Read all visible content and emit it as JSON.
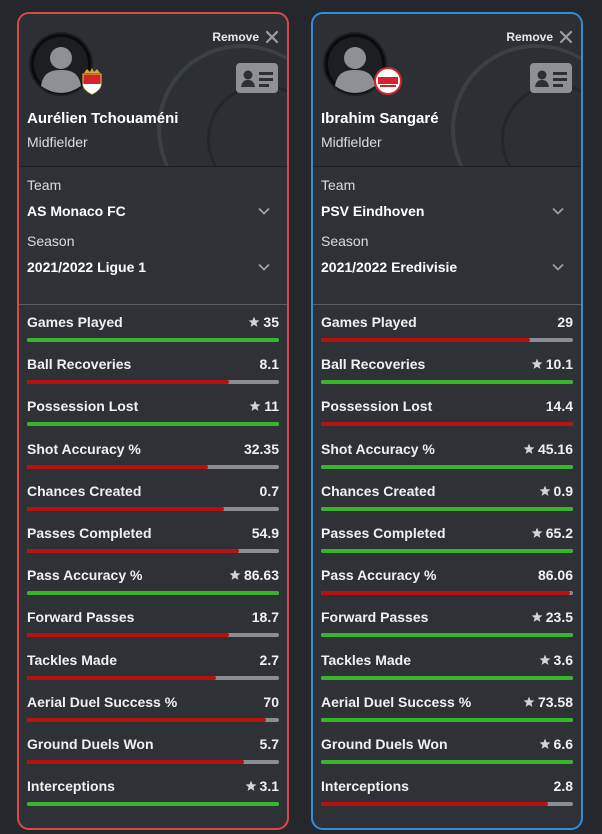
{
  "colors": {
    "better": "#38b52a",
    "worse": "#b51212",
    "track": "#8a8e94",
    "card_a_border": "#d64a4a",
    "card_b_border": "#2f8ee0"
  },
  "cards": [
    {
      "remove_label": "Remove",
      "club_badge": "as-monaco-badge",
      "name": "Aurélien Tchouaméni",
      "position": "Midfielder",
      "team_label": "Team",
      "team": "AS Monaco FC",
      "season_label": "Season",
      "season": "2021/2022 Ligue 1",
      "stats": [
        {
          "label": "Games Played",
          "value": "35",
          "star": true,
          "fill": 1.0,
          "status": "better"
        },
        {
          "label": "Ball Recoveries",
          "value": "8.1",
          "star": false,
          "fill": 0.8,
          "status": "worse"
        },
        {
          "label": "Possession Lost",
          "value": "11",
          "star": true,
          "fill": 1.0,
          "status": "better"
        },
        {
          "label": "Shot Accuracy %",
          "value": "32.35",
          "star": false,
          "fill": 0.72,
          "status": "worse"
        },
        {
          "label": "Chances Created",
          "value": "0.7",
          "star": false,
          "fill": 0.78,
          "status": "worse"
        },
        {
          "label": "Passes Completed",
          "value": "54.9",
          "star": false,
          "fill": 0.84,
          "status": "worse"
        },
        {
          "label": "Pass Accuracy %",
          "value": "86.63",
          "star": true,
          "fill": 1.0,
          "status": "better"
        },
        {
          "label": "Forward Passes",
          "value": "18.7",
          "star": false,
          "fill": 0.8,
          "status": "worse"
        },
        {
          "label": "Tackles Made",
          "value": "2.7",
          "star": false,
          "fill": 0.75,
          "status": "worse"
        },
        {
          "label": "Aerial Duel Success %",
          "value": "70",
          "star": false,
          "fill": 0.95,
          "status": "worse"
        },
        {
          "label": "Ground Duels Won",
          "value": "5.7",
          "star": false,
          "fill": 0.86,
          "status": "worse"
        },
        {
          "label": "Interceptions",
          "value": "3.1",
          "star": true,
          "fill": 1.0,
          "status": "better"
        }
      ]
    },
    {
      "remove_label": "Remove",
      "club_badge": "psv-badge",
      "name": "Ibrahim Sangaré",
      "position": "Midfielder",
      "team_label": "Team",
      "team": "PSV Eindhoven",
      "season_label": "Season",
      "season": "2021/2022 Eredivisie",
      "stats": [
        {
          "label": "Games Played",
          "value": "29",
          "star": false,
          "fill": 0.83,
          "status": "worse"
        },
        {
          "label": "Ball Recoveries",
          "value": "10.1",
          "star": true,
          "fill": 1.0,
          "status": "better"
        },
        {
          "label": "Possession Lost",
          "value": "14.4",
          "star": false,
          "fill": 1.0,
          "status": "worse"
        },
        {
          "label": "Shot Accuracy %",
          "value": "45.16",
          "star": true,
          "fill": 1.0,
          "status": "better"
        },
        {
          "label": "Chances Created",
          "value": "0.9",
          "star": true,
          "fill": 1.0,
          "status": "better"
        },
        {
          "label": "Passes Completed",
          "value": "65.2",
          "star": true,
          "fill": 1.0,
          "status": "better"
        },
        {
          "label": "Pass Accuracy %",
          "value": "86.06",
          "star": false,
          "fill": 0.99,
          "status": "worse"
        },
        {
          "label": "Forward Passes",
          "value": "23.5",
          "star": true,
          "fill": 1.0,
          "status": "better"
        },
        {
          "label": "Tackles Made",
          "value": "3.6",
          "star": true,
          "fill": 1.0,
          "status": "better"
        },
        {
          "label": "Aerial Duel Success %",
          "value": "73.58",
          "star": true,
          "fill": 1.0,
          "status": "better"
        },
        {
          "label": "Ground Duels Won",
          "value": "6.6",
          "star": true,
          "fill": 1.0,
          "status": "better"
        },
        {
          "label": "Interceptions",
          "value": "2.8",
          "star": false,
          "fill": 0.9,
          "status": "worse"
        }
      ]
    }
  ]
}
